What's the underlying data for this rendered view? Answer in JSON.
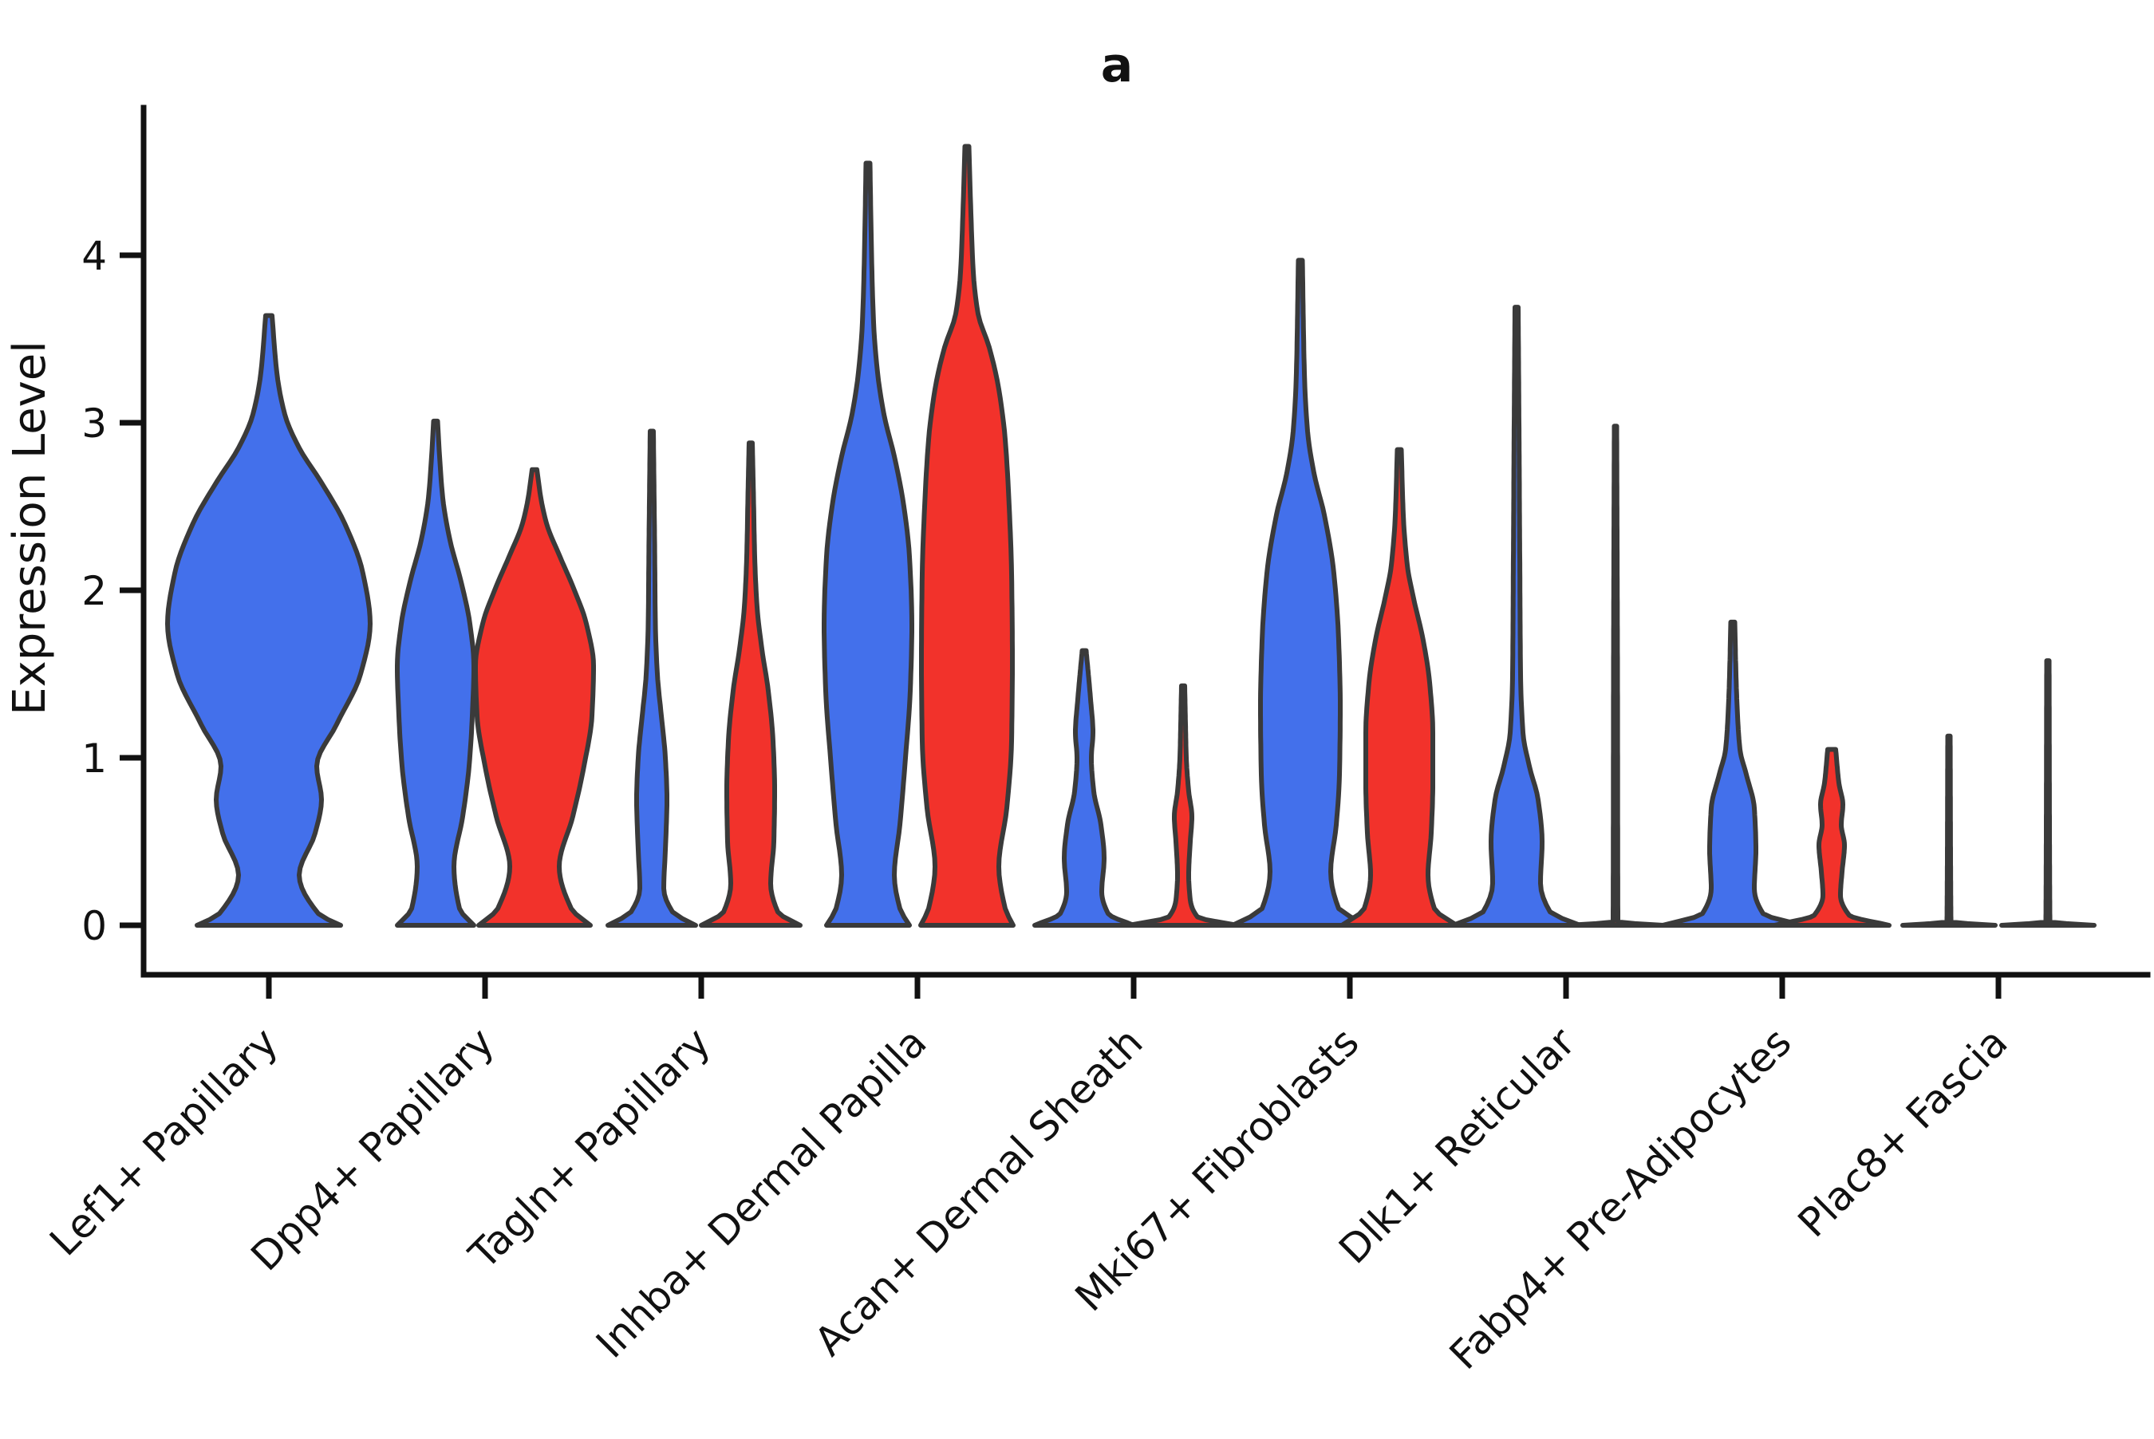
{
  "title": "a",
  "colors": {
    "blue": "#4370EB",
    "red": "#F2322B",
    "outline": "#3A3A3A",
    "axis": "#111111",
    "text": "#111111"
  },
  "chart_data": {
    "type": "violin",
    "title": "a",
    "xlabel": "",
    "ylabel": "Expression Level",
    "yticks": [
      0,
      1,
      2,
      3,
      4
    ],
    "ytick_labels": [
      "0",
      "1",
      "2",
      "3",
      "4"
    ],
    "ylim": [
      -0.3,
      4.9
    ],
    "grid": false,
    "categories": [
      "Lef1+ Papillary",
      "Dpp4+ Papillary",
      "Tagln+ Papillary",
      "Inhba+ Dermal Papilla",
      "Acan+ Dermal Sheath",
      "Mki67+ Fibroblasts",
      "Dlk1+ Reticular",
      "Fabp4+ Pre-Adipocytes",
      "Plac8+ Fascia"
    ],
    "groups": [
      "blue",
      "red"
    ],
    "violins": [
      {
        "category_index": 0,
        "group": "blue",
        "side": "center",
        "peak": 3.64,
        "profile": [
          [
            0,
            90
          ],
          [
            0.07,
            62
          ],
          [
            0.3,
            38
          ],
          [
            0.55,
            58
          ],
          [
            0.75,
            66
          ],
          [
            0.95,
            60
          ],
          [
            1.2,
            85
          ],
          [
            1.5,
            115
          ],
          [
            1.8,
            127
          ],
          [
            2.1,
            118
          ],
          [
            2.4,
            95
          ],
          [
            2.65,
            65
          ],
          [
            2.85,
            38
          ],
          [
            3.05,
            20
          ],
          [
            3.3,
            10
          ],
          [
            3.64,
            4
          ]
        ]
      },
      {
        "category_index": 1,
        "group": "blue",
        "side": "left",
        "peak": 3.01,
        "profile": [
          [
            0,
            48
          ],
          [
            0.1,
            30
          ],
          [
            0.35,
            23
          ],
          [
            0.65,
            34
          ],
          [
            0.95,
            42
          ],
          [
            1.25,
            46
          ],
          [
            1.55,
            48
          ],
          [
            1.8,
            43
          ],
          [
            2.05,
            32
          ],
          [
            2.3,
            18
          ],
          [
            2.55,
            9
          ],
          [
            2.8,
            5
          ],
          [
            3.01,
            2.5
          ]
        ]
      },
      {
        "category_index": 1,
        "group": "red",
        "side": "right",
        "peak": 2.72,
        "profile": [
          [
            0,
            70
          ],
          [
            0.1,
            46
          ],
          [
            0.35,
            31
          ],
          [
            0.65,
            48
          ],
          [
            0.95,
            62
          ],
          [
            1.25,
            72
          ],
          [
            1.55,
            74
          ],
          [
            1.8,
            65
          ],
          [
            2.0,
            50
          ],
          [
            2.2,
            32
          ],
          [
            2.4,
            15
          ],
          [
            2.55,
            8
          ],
          [
            2.72,
            3
          ]
        ]
      },
      {
        "category_index": 2,
        "group": "blue",
        "side": "left",
        "peak": 2.95,
        "profile": [
          [
            0,
            55
          ],
          [
            0.08,
            26
          ],
          [
            0.22,
            15
          ],
          [
            0.45,
            17
          ],
          [
            0.75,
            19
          ],
          [
            1.0,
            17
          ],
          [
            1.25,
            12
          ],
          [
            1.5,
            7
          ],
          [
            1.8,
            4.5
          ],
          [
            2.3,
            3.5
          ],
          [
            2.95,
            2
          ]
        ]
      },
      {
        "category_index": 2,
        "group": "red",
        "side": "right",
        "peak": 2.88,
        "profile": [
          [
            0,
            62
          ],
          [
            0.08,
            34
          ],
          [
            0.25,
            25
          ],
          [
            0.5,
            29
          ],
          [
            0.8,
            30
          ],
          [
            1.1,
            28
          ],
          [
            1.4,
            22
          ],
          [
            1.65,
            14
          ],
          [
            1.9,
            8
          ],
          [
            2.2,
            5
          ],
          [
            2.55,
            3.5
          ],
          [
            2.88,
            2
          ]
        ]
      },
      {
        "category_index": 3,
        "group": "blue",
        "side": "left",
        "peak": 4.55,
        "profile": [
          [
            0,
            52
          ],
          [
            0.1,
            40
          ],
          [
            0.3,
            33
          ],
          [
            0.6,
            40
          ],
          [
            1.0,
            47
          ],
          [
            1.4,
            53
          ],
          [
            1.8,
            55
          ],
          [
            2.2,
            52
          ],
          [
            2.5,
            45
          ],
          [
            2.8,
            33
          ],
          [
            3.05,
            20
          ],
          [
            3.3,
            12
          ],
          [
            3.6,
            7
          ],
          [
            4.0,
            4.5
          ],
          [
            4.55,
            2.5
          ]
        ]
      },
      {
        "category_index": 3,
        "group": "red",
        "side": "right",
        "peak": 4.65,
        "profile": [
          [
            0,
            58
          ],
          [
            0.1,
            48
          ],
          [
            0.35,
            40
          ],
          [
            0.7,
            50
          ],
          [
            1.1,
            56
          ],
          [
            1.6,
            57
          ],
          [
            2.1,
            56
          ],
          [
            2.5,
            53
          ],
          [
            2.9,
            48
          ],
          [
            3.2,
            40
          ],
          [
            3.45,
            28
          ],
          [
            3.65,
            14
          ],
          [
            3.9,
            8
          ],
          [
            4.25,
            5
          ],
          [
            4.65,
            2.5
          ]
        ]
      },
      {
        "category_index": 4,
        "group": "blue",
        "side": "left",
        "peak": 1.64,
        "profile": [
          [
            0,
            62
          ],
          [
            0.07,
            30
          ],
          [
            0.2,
            22
          ],
          [
            0.4,
            25
          ],
          [
            0.6,
            21
          ],
          [
            0.8,
            12
          ],
          [
            1.0,
            9
          ],
          [
            1.15,
            11
          ],
          [
            1.35,
            8
          ],
          [
            1.64,
            2.5
          ]
        ]
      },
      {
        "category_index": 4,
        "group": "red",
        "side": "right",
        "peak": 1.43,
        "profile": [
          [
            0,
            68
          ],
          [
            0.05,
            18
          ],
          [
            0.15,
            9
          ],
          [
            0.3,
            7
          ],
          [
            0.5,
            9
          ],
          [
            0.65,
            11
          ],
          [
            0.8,
            7
          ],
          [
            1.0,
            4
          ],
          [
            1.2,
            3
          ],
          [
            1.43,
            2
          ]
        ]
      },
      {
        "category_index": 5,
        "group": "blue",
        "side": "left",
        "peak": 3.97,
        "profile": [
          [
            0,
            85
          ],
          [
            0.1,
            48
          ],
          [
            0.32,
            38
          ],
          [
            0.6,
            45
          ],
          [
            0.9,
            49
          ],
          [
            1.3,
            50
          ],
          [
            1.7,
            48
          ],
          [
            2.1,
            42
          ],
          [
            2.45,
            30
          ],
          [
            2.7,
            17
          ],
          [
            2.95,
            9
          ],
          [
            3.3,
            5
          ],
          [
            3.97,
            2.5
          ]
        ]
      },
      {
        "category_index": 5,
        "group": "red",
        "side": "right",
        "peak": 2.84,
        "profile": [
          [
            0,
            72
          ],
          [
            0.1,
            44
          ],
          [
            0.3,
            36
          ],
          [
            0.55,
            40
          ],
          [
            0.85,
            42
          ],
          [
            1.15,
            42
          ],
          [
            1.45,
            38
          ],
          [
            1.7,
            30
          ],
          [
            1.95,
            18
          ],
          [
            2.15,
            10
          ],
          [
            2.45,
            5
          ],
          [
            2.84,
            2.5
          ]
        ]
      },
      {
        "category_index": 6,
        "group": "blue",
        "side": "left",
        "peak": 3.69,
        "profile": [
          [
            0,
            80
          ],
          [
            0.08,
            42
          ],
          [
            0.25,
            30
          ],
          [
            0.5,
            32
          ],
          [
            0.75,
            27
          ],
          [
            0.95,
            16
          ],
          [
            1.15,
            8
          ],
          [
            1.5,
            5
          ],
          [
            2.2,
            4
          ],
          [
            3.0,
            3
          ],
          [
            3.69,
            2
          ]
        ]
      },
      {
        "category_index": 6,
        "group": "red",
        "side": "right",
        "peak": 2.98,
        "profile": [
          [
            0,
            60
          ],
          [
            0.02,
            3
          ],
          [
            1.5,
            2.5
          ],
          [
            2.98,
            1.5
          ]
        ]
      },
      {
        "category_index": 7,
        "group": "blue",
        "side": "left",
        "peak": 1.81,
        "profile": [
          [
            0,
            88
          ],
          [
            0.07,
            38
          ],
          [
            0.22,
            27
          ],
          [
            0.45,
            29
          ],
          [
            0.7,
            27
          ],
          [
            0.9,
            17
          ],
          [
            1.05,
            9
          ],
          [
            1.25,
            6
          ],
          [
            1.5,
            4
          ],
          [
            1.81,
            2.5
          ]
        ]
      },
      {
        "category_index": 7,
        "group": "red",
        "side": "right",
        "peak": 1.05,
        "profile": [
          [
            0,
            72
          ],
          [
            0.06,
            22
          ],
          [
            0.18,
            11
          ],
          [
            0.32,
            13
          ],
          [
            0.48,
            16
          ],
          [
            0.6,
            12
          ],
          [
            0.72,
            14
          ],
          [
            0.85,
            9
          ],
          [
            1.05,
            5
          ]
        ]
      },
      {
        "category_index": 8,
        "group": "blue",
        "side": "left",
        "peak": 1.13,
        "profile": [
          [
            0,
            58
          ],
          [
            0.02,
            2.5
          ],
          [
            1.13,
            1.5
          ]
        ]
      },
      {
        "category_index": 8,
        "group": "red",
        "side": "right",
        "peak": 1.58,
        "profile": [
          [
            0,
            58
          ],
          [
            0.02,
            2.5
          ],
          [
            1.58,
            1.5
          ]
        ]
      }
    ]
  }
}
